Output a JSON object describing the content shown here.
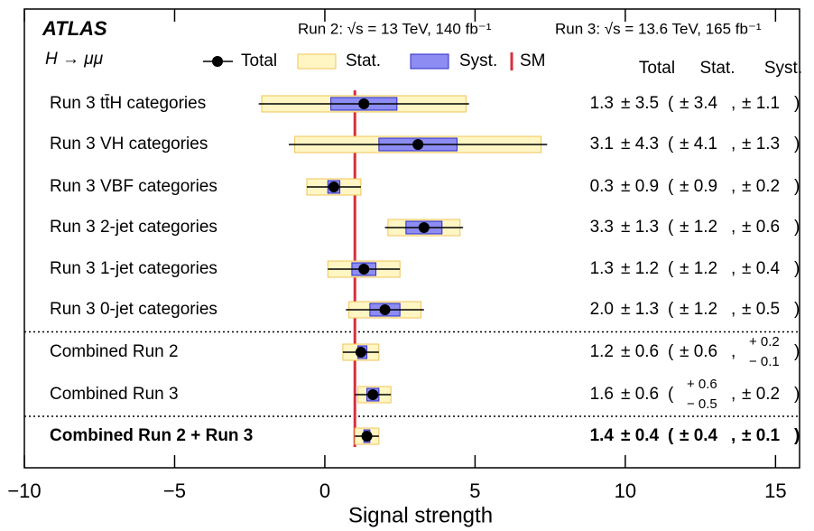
{
  "chart_data": {
    "type": "forest",
    "experiment": "ATLAS",
    "process": "H → μμ",
    "run2_label": "Run 2: √s = 13 TeV, 140 fb⁻¹",
    "run3_label": "Run 3: √s = 13.6 TeV, 165 fb⁻¹",
    "xlabel": "Signal strength",
    "xlim": [
      -10,
      15.8
    ],
    "xticks": [
      {
        "value": -10,
        "label": "−10"
      },
      {
        "value": -5,
        "label": "−5"
      },
      0,
      5,
      10,
      15
    ],
    "components": [
      {
        "name": "Total",
        "color": "#000000"
      },
      {
        "name": "Stat.",
        "color": "#fff6c4",
        "edge": "#f0c45a"
      },
      {
        "name": "Syst.",
        "color": "#8c8cf2",
        "edge": "#2b2bc8"
      }
    ],
    "sm": {
      "name": "SM",
      "value": 1,
      "color": "#d6303c"
    },
    "punctuation": [
      "(",
      ",",
      ")"
    ],
    "separators_after": [
      5,
      7
    ],
    "rows": [
      {
        "label": "Run 3 tt̄H categories",
        "value": 1.3,
        "total": {
          "up": 3.5,
          "down": 3.5,
          "label": "± 3.5"
        },
        "stat": {
          "up": 3.4,
          "down": 3.4,
          "label": "± 3.4"
        },
        "syst": {
          "up": 1.1,
          "down": 1.1,
          "label": "± 1.1"
        }
      },
      {
        "label": "Run 3 VH categories",
        "value": 3.1,
        "total": {
          "up": 4.3,
          "down": 4.3,
          "label": "± 4.3"
        },
        "stat": {
          "up": 4.1,
          "down": 4.1,
          "label": "± 4.1"
        },
        "syst": {
          "up": 1.3,
          "down": 1.3,
          "label": "± 1.3"
        }
      },
      {
        "label": "Run 3 VBF categories",
        "value": 0.3,
        "total": {
          "up": 0.9,
          "down": 0.9,
          "label": "± 0.9"
        },
        "stat": {
          "up": 0.9,
          "down": 0.9,
          "label": "± 0.9"
        },
        "syst": {
          "up": 0.2,
          "down": 0.2,
          "label": "± 0.2"
        }
      },
      {
        "label": "Run 3 2-jet categories",
        "value": 3.3,
        "total": {
          "up": 1.3,
          "down": 1.3,
          "label": "± 1.3"
        },
        "stat": {
          "up": 1.2,
          "down": 1.2,
          "label": "± 1.2"
        },
        "syst": {
          "up": 0.6,
          "down": 0.6,
          "label": "± 0.6"
        }
      },
      {
        "label": "Run 3 1-jet categories",
        "value": 1.3,
        "total": {
          "up": 1.2,
          "down": 1.2,
          "label": "± 1.2"
        },
        "stat": {
          "up": 1.2,
          "down": 1.2,
          "label": "± 1.2"
        },
        "syst": {
          "up": 0.4,
          "down": 0.4,
          "label": "± 0.4"
        }
      },
      {
        "label": "Run 3 0-jet categories",
        "value": 2.0,
        "value_label": "2.0",
        "total": {
          "up": 1.3,
          "down": 1.3,
          "label": "± 1.3"
        },
        "stat": {
          "up": 1.2,
          "down": 1.2,
          "label": "± 1.2"
        },
        "syst": {
          "up": 0.5,
          "down": 0.5,
          "label": "± 0.5"
        }
      },
      {
        "label": "Combined Run 2",
        "value": 1.2,
        "total": {
          "up": 0.6,
          "down": 0.6,
          "label": "± 0.6"
        },
        "stat": {
          "up": 0.6,
          "down": 0.6,
          "label": "± 0.6"
        },
        "syst": {
          "up": 0.2,
          "down": 0.1,
          "label_up": "+ 0.2",
          "label_down": "− 0.1"
        }
      },
      {
        "label": "Combined Run 3",
        "value": 1.6,
        "total": {
          "up": 0.6,
          "down": 0.6,
          "label": "± 0.6"
        },
        "stat": {
          "up": 0.6,
          "down": 0.5,
          "label_up": "+ 0.6",
          "label_down": "− 0.5"
        },
        "syst": {
          "up": 0.2,
          "down": 0.2,
          "label": "± 0.2"
        }
      },
      {
        "label": "Combined Run 2 + Run 3",
        "value": 1.4,
        "highlight": true,
        "total": {
          "up": 0.4,
          "down": 0.4,
          "label": "± 0.4"
        },
        "stat": {
          "up": 0.4,
          "down": 0.4,
          "label": "± 0.4"
        },
        "syst": {
          "up": 0.1,
          "down": 0.1,
          "label": "± 0.1"
        }
      }
    ]
  }
}
